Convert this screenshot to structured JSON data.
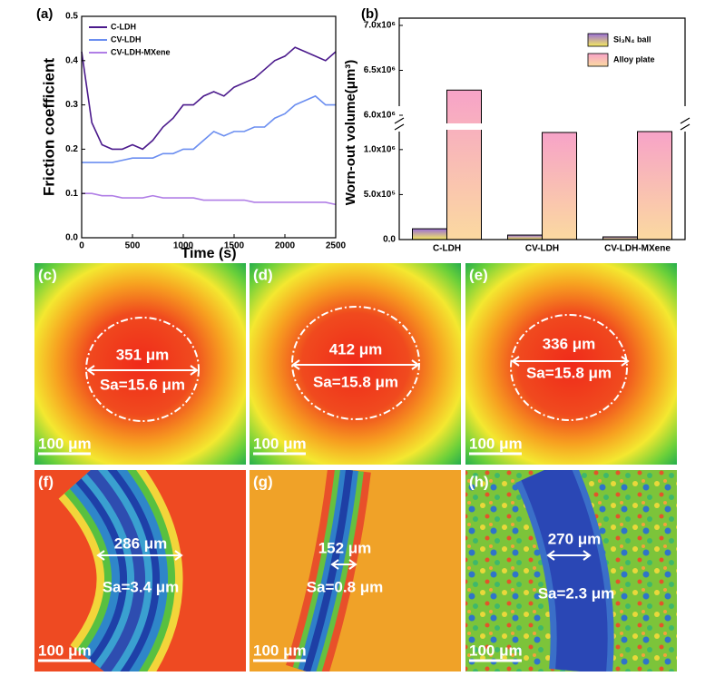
{
  "chart_data": [
    {
      "type": "line",
      "panel_label": "(a)",
      "xlabel": "Time (s)",
      "ylabel": "Friction coefficient",
      "x": [
        0,
        100,
        200,
        300,
        400,
        500,
        600,
        700,
        800,
        900,
        1000,
        1100,
        1200,
        1300,
        1400,
        1500,
        1600,
        1700,
        1800,
        1900,
        2000,
        2100,
        2200,
        2300,
        2400,
        2500
      ],
      "series": [
        {
          "name": "C-LDH",
          "color": "#4b1a8c",
          "values": [
            0.42,
            0.26,
            0.21,
            0.2,
            0.2,
            0.21,
            0.2,
            0.22,
            0.25,
            0.27,
            0.3,
            0.3,
            0.32,
            0.33,
            0.32,
            0.34,
            0.35,
            0.36,
            0.38,
            0.4,
            0.41,
            0.43,
            0.42,
            0.41,
            0.4,
            0.42
          ]
        },
        {
          "name": "CV-LDH",
          "color": "#6b8ef0",
          "values": [
            0.17,
            0.17,
            0.17,
            0.17,
            0.175,
            0.18,
            0.18,
            0.18,
            0.19,
            0.19,
            0.2,
            0.2,
            0.22,
            0.24,
            0.23,
            0.24,
            0.24,
            0.25,
            0.25,
            0.27,
            0.28,
            0.3,
            0.31,
            0.32,
            0.3,
            0.3
          ]
        },
        {
          "name": "CV-LDH-MXene",
          "color": "#b07ee6",
          "values": [
            0.1,
            0.1,
            0.095,
            0.095,
            0.09,
            0.09,
            0.09,
            0.095,
            0.09,
            0.09,
            0.09,
            0.09,
            0.085,
            0.085,
            0.085,
            0.085,
            0.085,
            0.08,
            0.08,
            0.08,
            0.08,
            0.08,
            0.08,
            0.08,
            0.08,
            0.075
          ]
        }
      ],
      "xlim": [
        0,
        2500
      ],
      "xticks": [
        0,
        500,
        1000,
        1500,
        2000,
        2500
      ],
      "ylim": [
        0,
        0.5
      ],
      "yticks": [
        {
          "value": 0,
          "label": "0.0"
        },
        0.1,
        0.2,
        0.3,
        0.4,
        0.5
      ]
    },
    {
      "type": "bar",
      "panel_label": "(b)",
      "ylabel": "Worn-out volume(μm³)",
      "categories": [
        "C-LDH",
        "CV-LDH",
        "CV-LDH-MXene"
      ],
      "series": [
        {
          "name": "Si₃N₄ ball",
          "color": "#9b6fd6",
          "values": [
            120000,
            50000,
            30000
          ]
        },
        {
          "name": "Alloy plate",
          "color": "#f7a3c8",
          "values": [
            6280000,
            1190000,
            1200000
          ]
        }
      ],
      "ylim": [
        0,
        7000000
      ],
      "ybreak": [
        1200000,
        6000000
      ],
      "yticks": [
        {
          "value": 0,
          "label": "0.0"
        },
        {
          "value": 500000,
          "label": "5.0x10⁵"
        },
        {
          "value": 1000000,
          "label": "1.0x10⁶"
        },
        {
          "value": 6000000,
          "label": "6.0x10⁶"
        },
        {
          "value": 6500000,
          "label": "6.5x10⁶"
        },
        {
          "value": 7000000,
          "label": "7.0x10⁶"
        }
      ],
      "legend": "upper right"
    }
  ],
  "images": [
    {
      "label": "(c)",
      "width": "351 μm",
      "sa": "Sa=15.6 μm",
      "scale": "100 μm"
    },
    {
      "label": "(d)",
      "width": "412 μm",
      "sa": "Sa=15.8 μm",
      "scale": "100 μm"
    },
    {
      "label": "(e)",
      "width": "336 μm",
      "sa": "Sa=15.8 μm",
      "scale": "100 μm"
    },
    {
      "label": "(f)",
      "width": "286 μm",
      "sa": "Sa=3.4 μm",
      "scale": "100 μm"
    },
    {
      "label": "(g)",
      "width": "152 μm",
      "sa": "Sa=0.8 μm",
      "scale": "100 μm"
    },
    {
      "label": "(h)",
      "width": "270 μm",
      "sa": "Sa=2.3 μm",
      "scale": "100 μm"
    }
  ]
}
